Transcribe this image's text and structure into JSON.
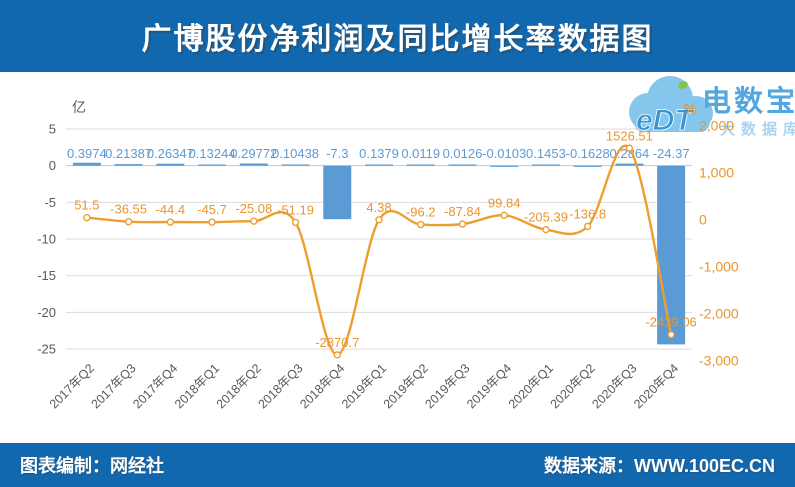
{
  "header": {
    "title": "广博股份净利润及同比增长率数据图"
  },
  "footer": {
    "left": "图表编制：网经社",
    "right": "数据来源：WWW.100EC.CN"
  },
  "watermark": {
    "logo_text": "eDT",
    "brand": "电数宝",
    "tagline": "大数据库",
    "cloud_color": "#7EC3EC",
    "logo_text_color": "#2E8FD0",
    "sprout_color": "#7CC242"
  },
  "colors": {
    "header_bg": "#1268AE",
    "bar": "#5B9BD5",
    "line": "#EE9E30",
    "orange_label": "#E89530",
    "gray_text": "#595959",
    "gridline": "#DCDCDC"
  },
  "chart_data": {
    "type": "bar",
    "subtype": "bar+line combo, dual axis",
    "categories": [
      "2017年Q2",
      "2017年Q3",
      "2017年Q4",
      "2018年Q1",
      "2018年Q2",
      "2018年Q3",
      "2018年Q4",
      "2019年Q1",
      "2019年Q2",
      "2019年Q3",
      "2019年Q4",
      "2020年Q1",
      "2020年Q2",
      "2020年Q3",
      "2020年Q4"
    ],
    "series": [
      {
        "name": "净利润",
        "type": "bar",
        "axis": "left",
        "color": "#5B9BD5",
        "values": [
          0.3974,
          0.21387,
          0.26347,
          0.13244,
          0.29772,
          0.10438,
          -7.3,
          0.1379,
          0.0119,
          0.0126,
          -0.0103,
          0.1453,
          -0.1628,
          0.2864,
          -24.37
        ],
        "labels": [
          "0.3974",
          "0.21387",
          "0.26347",
          "0.13244",
          "0.29772",
          "0.10438",
          "-7.3",
          "0.1379",
          "0.0119",
          "0.0126",
          "-0.0103",
          "0.1453",
          "-0.1628",
          "0.2864",
          "-24.37"
        ]
      },
      {
        "name": "同比增长率",
        "type": "line",
        "axis": "right",
        "color": "#EE9E30",
        "values": [
          51.5,
          -36.55,
          -44.4,
          -45.7,
          -25.08,
          -51.19,
          -2870.7,
          4.38,
          -96.2,
          -87.84,
          99.84,
          -205.39,
          -136.8,
          1526.51,
          -2439.06
        ],
        "labels": [
          "51.5",
          "-36.55",
          "-44.4",
          "-45.7",
          "-25.08",
          "-51.19",
          "-2870.7",
          "4.38",
          "-96.2",
          "-87.84",
          "99.84",
          "-205.39",
          "-136.8",
          "1526.51",
          "-2439.06"
        ]
      }
    ],
    "left_axis": {
      "unit": "亿",
      "max": 5,
      "min": -25,
      "tick_values": [
        5,
        0,
        -5,
        -10,
        -15,
        -20,
        -25
      ],
      "tick_labels": [
        "5",
        "0",
        "-5",
        "-10",
        "-15",
        "-20",
        "-25"
      ]
    },
    "right_axis": {
      "unit": "%",
      "max": 2000,
      "min": -3000,
      "tick_values": [
        2000,
        1000,
        0,
        -1000,
        -2000,
        -3000
      ],
      "tick_labels": [
        "2,000",
        "1,000",
        "0",
        "-1,000",
        "-2,000",
        "-3,000"
      ]
    },
    "grid": "horizontal gridlines on left-axis ticks",
    "legend": "none"
  }
}
